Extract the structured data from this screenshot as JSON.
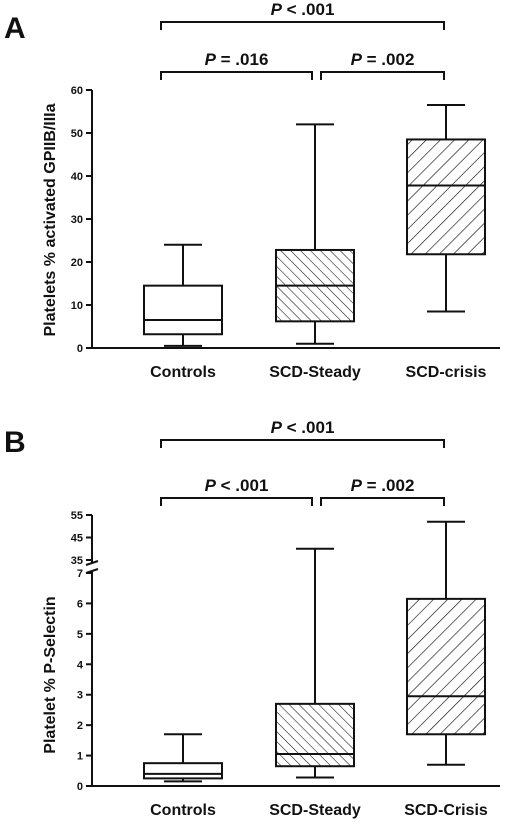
{
  "chart_data": [
    {
      "panel_label": "A",
      "type": "box",
      "ylabel": "Platelets % activated GPIIB/IIIa",
      "ylim": [
        0,
        60
      ],
      "yticks": [
        "0",
        "10",
        "20",
        "30",
        "40",
        "50",
        "60"
      ],
      "categories": [
        "Controls",
        "SCD-Steady",
        "SCD-crisis"
      ],
      "boxes": [
        {
          "category": "Controls",
          "min": 0.5,
          "q1": 3.2,
          "median": 6.5,
          "q3": 14.5,
          "max": 24
        },
        {
          "category": "SCD-Steady",
          "min": 1.0,
          "q1": 6.2,
          "median": 14.5,
          "q3": 22.8,
          "max": 52
        },
        {
          "category": "SCD-crisis",
          "min": 8.5,
          "q1": 21.8,
          "median": 37.8,
          "q3": 48.5,
          "max": 56.5
        }
      ],
      "comparisons": [
        {
          "from": 0,
          "to": 2,
          "p_prefix": "P",
          "p_value": " < .001"
        },
        {
          "from": 0,
          "to": 1,
          "p_prefix": "P",
          "p_value": " = .016"
        },
        {
          "from": 1,
          "to": 2,
          "p_prefix": "P",
          "p_value": " = .002"
        }
      ]
    },
    {
      "panel_label": "B",
      "type": "box",
      "ylabel": "Platelet % P-Selectin",
      "ylim": [
        0,
        7
      ],
      "axis_break": {
        "lower_max": 7,
        "upper_range": [
          35,
          55
        ]
      },
      "yticks": [
        "0",
        "1",
        "2",
        "3",
        "4",
        "5",
        "6",
        "7"
      ],
      "yticks_upper": [
        "35",
        "45",
        "55"
      ],
      "categories": [
        "Controls",
        "SCD-Steady",
        "SCD-Crisis"
      ],
      "boxes": [
        {
          "category": "Controls",
          "min": 0.15,
          "q1": 0.25,
          "median": 0.4,
          "q3": 0.75,
          "max": 1.7
        },
        {
          "category": "SCD-Steady",
          "min": 0.28,
          "q1": 0.65,
          "median": 1.05,
          "q3": 2.7,
          "max": 40
        },
        {
          "category": "SCD-Crisis",
          "min": 0.7,
          "q1": 1.7,
          "median": 2.95,
          "q3": 6.15,
          "max": 52
        }
      ],
      "comparisons": [
        {
          "from": 0,
          "to": 2,
          "p_prefix": "P",
          "p_value": " < .001"
        },
        {
          "from": 0,
          "to": 1,
          "p_prefix": "P",
          "p_value": " < .001"
        },
        {
          "from": 1,
          "to": 2,
          "p_prefix": "P",
          "p_value": " = .002"
        }
      ]
    }
  ]
}
